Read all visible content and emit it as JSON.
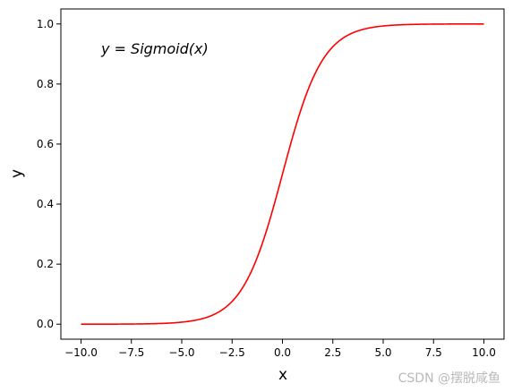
{
  "chart_data": {
    "type": "line",
    "function": "sigmoid",
    "x_range": [
      -10,
      10
    ],
    "xlim": [
      -11,
      11
    ],
    "ylim": [
      -0.05,
      1.05
    ],
    "xticks": [
      -10.0,
      -7.5,
      -5.0,
      -2.5,
      0.0,
      2.5,
      5.0,
      7.5,
      10.0
    ],
    "xtick_labels": [
      "−10.0",
      "−7.5",
      "−5.0",
      "−2.5",
      "0.0",
      "2.5",
      "5.0",
      "7.5",
      "10.0"
    ],
    "yticks": [
      0.0,
      0.2,
      0.4,
      0.6,
      0.8,
      1.0
    ],
    "ytick_labels": [
      "0.0",
      "0.2",
      "0.4",
      "0.6",
      "0.8",
      "1.0"
    ],
    "xlabel": "x",
    "ylabel": "y",
    "annotation": "y = Sigmoid(x)",
    "grid": false,
    "series": [
      {
        "color": "#ff0000"
      }
    ]
  },
  "watermark": "CSDN @摆脱咸鱼"
}
